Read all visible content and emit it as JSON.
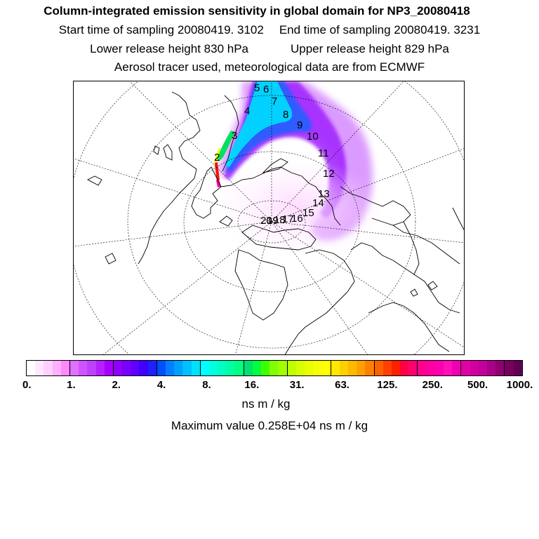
{
  "header": {
    "title": "Column-integrated emission sensitivity in global domain for NP3_20080418",
    "start_time": "Start time of sampling 20080419.  3102",
    "end_time": "End time of sampling 20080419.  3231",
    "lower_release": "Lower release height  830 hPa",
    "upper_release": "Upper release height  829 hPa",
    "tracer_info": "Aerosol tracer used, meteorological data are from ECMWF"
  },
  "map": {
    "projection": "polar stereographic (north pole)",
    "time_markers": [
      "2",
      "3",
      "4",
      "5",
      "6",
      "7",
      "8",
      "9",
      "10",
      "11",
      "12",
      "13",
      "14",
      "15",
      "16",
      "17",
      "18",
      "19",
      "20"
    ],
    "colors": {
      "coast": "#000000",
      "grid": "#000000",
      "plume_core": "#ff0000",
      "plume_mid": "#00e0e0",
      "plume_outer": "#b400ff"
    }
  },
  "colorbar": {
    "tick_labels": [
      "0.",
      "1.",
      "2.",
      "4.",
      "8.",
      "16.",
      "31.",
      "63.",
      "125.",
      "250.",
      "500.",
      "1000."
    ],
    "colors": [
      "#ffffff",
      "#ffe8ff",
      "#ffd0ff",
      "#ffb0ff",
      "#ff88ff",
      "#e070ff",
      "#cc55ff",
      "#c040ff",
      "#b420ff",
      "#a800ff",
      "#9000ff",
      "#7a00ff",
      "#6000ff",
      "#4000ff",
      "#2020ff",
      "#0050ff",
      "#0080ff",
      "#00a0ff",
      "#00c0ff",
      "#00e0ff",
      "#00ffff",
      "#00ffe0",
      "#00ffc0",
      "#00ffa0",
      "#00ff80",
      "#00e070",
      "#00ff40",
      "#40ff00",
      "#80ff00",
      "#a0ff00",
      "#c0ff00",
      "#d8ff00",
      "#e8ff00",
      "#f8ff00",
      "#ffff00",
      "#ffe800",
      "#ffd000",
      "#ffb800",
      "#ffa000",
      "#ff8000",
      "#ff6000",
      "#ff4000",
      "#ff2000",
      "#ff0040",
      "#ff0070",
      "#ff0090",
      "#ff00a0",
      "#ff00b0",
      "#ff10b8",
      "#f000b0",
      "#e000a8",
      "#d000a0",
      "#c00098",
      "#a80088",
      "#900070",
      "#780060",
      "#600050"
    ],
    "units": "ns m / kg"
  },
  "footer": {
    "max_value": "Maximum value  0.258E+04 ns m / kg"
  }
}
